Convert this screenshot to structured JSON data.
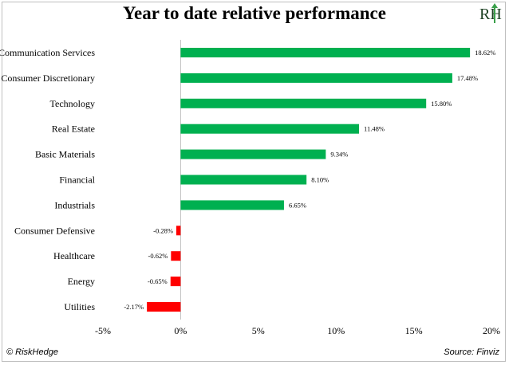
{
  "title": "Year to date relative performance",
  "logo": {
    "text": "RH"
  },
  "footer": {
    "left": "© RiskHedge",
    "right": "Source: Finviz"
  },
  "chart_data": {
    "type": "bar",
    "orientation": "horizontal",
    "title": "Year to date relative performance",
    "categories": [
      "Communication Services",
      "Consumer Discretionary",
      "Technology",
      "Real Estate",
      "Basic Materials",
      "Financial",
      "Industrials",
      "Consumer Defensive",
      "Healthcare",
      "Energy",
      "Utilities"
    ],
    "values": [
      18.62,
      17.48,
      15.8,
      11.48,
      9.34,
      8.1,
      6.65,
      -0.28,
      -0.62,
      -0.65,
      -2.17
    ],
    "data_labels": [
      "18.62%",
      "17.48%",
      "15.80%",
      "11.48%",
      "9.34%",
      "8.10%",
      "6.65%",
      "-0.28%",
      "-0.62%",
      "-0.65%",
      "-2.17%"
    ],
    "xlim": [
      -5,
      20
    ],
    "x_ticks": [
      -5,
      0,
      5,
      10,
      15,
      20
    ],
    "x_tick_labels": [
      "-5%",
      "0%",
      "5%",
      "10%",
      "15%",
      "20%"
    ],
    "colors": {
      "positive": "#00b050",
      "negative": "#ff0000"
    },
    "grid": false,
    "legend": "none"
  }
}
